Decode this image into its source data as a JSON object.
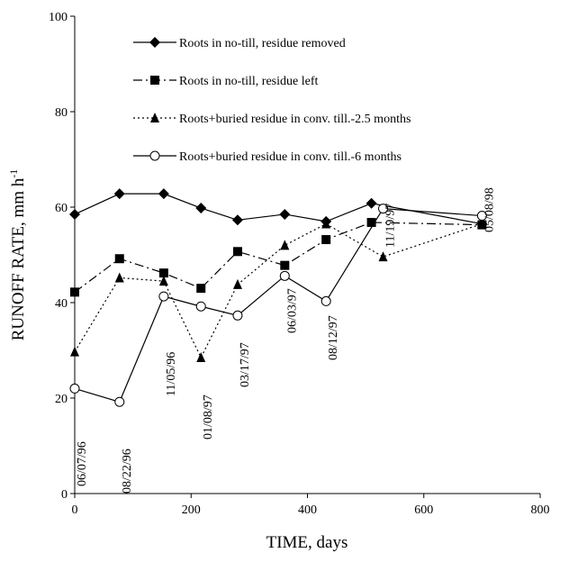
{
  "chart_data": {
    "type": "line",
    "xlabel": "TIME, days",
    "ylabel": "RUNOFF RATE, mm h",
    "ylabel_sup": "-1",
    "xlim": [
      0,
      800
    ],
    "xticks": [
      0,
      200,
      400,
      600,
      800
    ],
    "ylim": [
      0,
      100
    ],
    "yticks": [
      0,
      20,
      40,
      60,
      80,
      100
    ],
    "series": [
      {
        "name": "Roots in no-till, residue removed",
        "color": "#000000",
        "marker": "diamond",
        "dash": "solid",
        "x": [
          0,
          77,
          153,
          217,
          280,
          361,
          432,
          510,
          700
        ],
        "values": [
          58.5,
          62.8,
          62.8,
          59.8,
          57.3,
          58.5,
          57,
          60.8,
          56.5
        ]
      },
      {
        "name": "Roots in no-till, residue left",
        "color": "#000000",
        "marker": "square",
        "dash": "dashdot",
        "x": [
          0,
          77,
          153,
          217,
          280,
          361,
          432,
          510,
          700
        ],
        "values": [
          42.2,
          49.2,
          46.2,
          43,
          50.7,
          47.8,
          53.2,
          56.8,
          56.3
        ]
      },
      {
        "name": "Roots+buried residue in conv. till.-2.5 months",
        "color": "#000000",
        "marker": "triangle",
        "dash": "dotted",
        "x": [
          0,
          77,
          153,
          217,
          280,
          361,
          432,
          530,
          700
        ],
        "values": [
          29.7,
          45.2,
          44.5,
          28.5,
          43.8,
          52,
          56.5,
          49.6,
          56.5
        ]
      },
      {
        "name": "Roots+buried residue in conv. till.-6 months",
        "color": "#000000",
        "marker": "circle",
        "dash": "solid",
        "x": [
          0,
          77,
          153,
          217,
          280,
          361,
          432,
          530,
          700
        ],
        "values": [
          22,
          19.2,
          41.3,
          39.2,
          37.3,
          45.6,
          40.3,
          59.7,
          58.2
        ]
      }
    ],
    "date_labels": [
      {
        "text": "06/07/96",
        "x": 0
      },
      {
        "text": "08/22/96",
        "x": 77
      },
      {
        "text": "11/05/96",
        "x": 153
      },
      {
        "text": "01/08/97",
        "x": 217
      },
      {
        "text": "03/17/97",
        "x": 280
      },
      {
        "text": "06/03/97",
        "x": 361
      },
      {
        "text": "08/12/97",
        "x": 432
      },
      {
        "text": "11/19/97",
        "x": 530
      },
      {
        "text": "05/08/98",
        "x": 700
      }
    ]
  }
}
